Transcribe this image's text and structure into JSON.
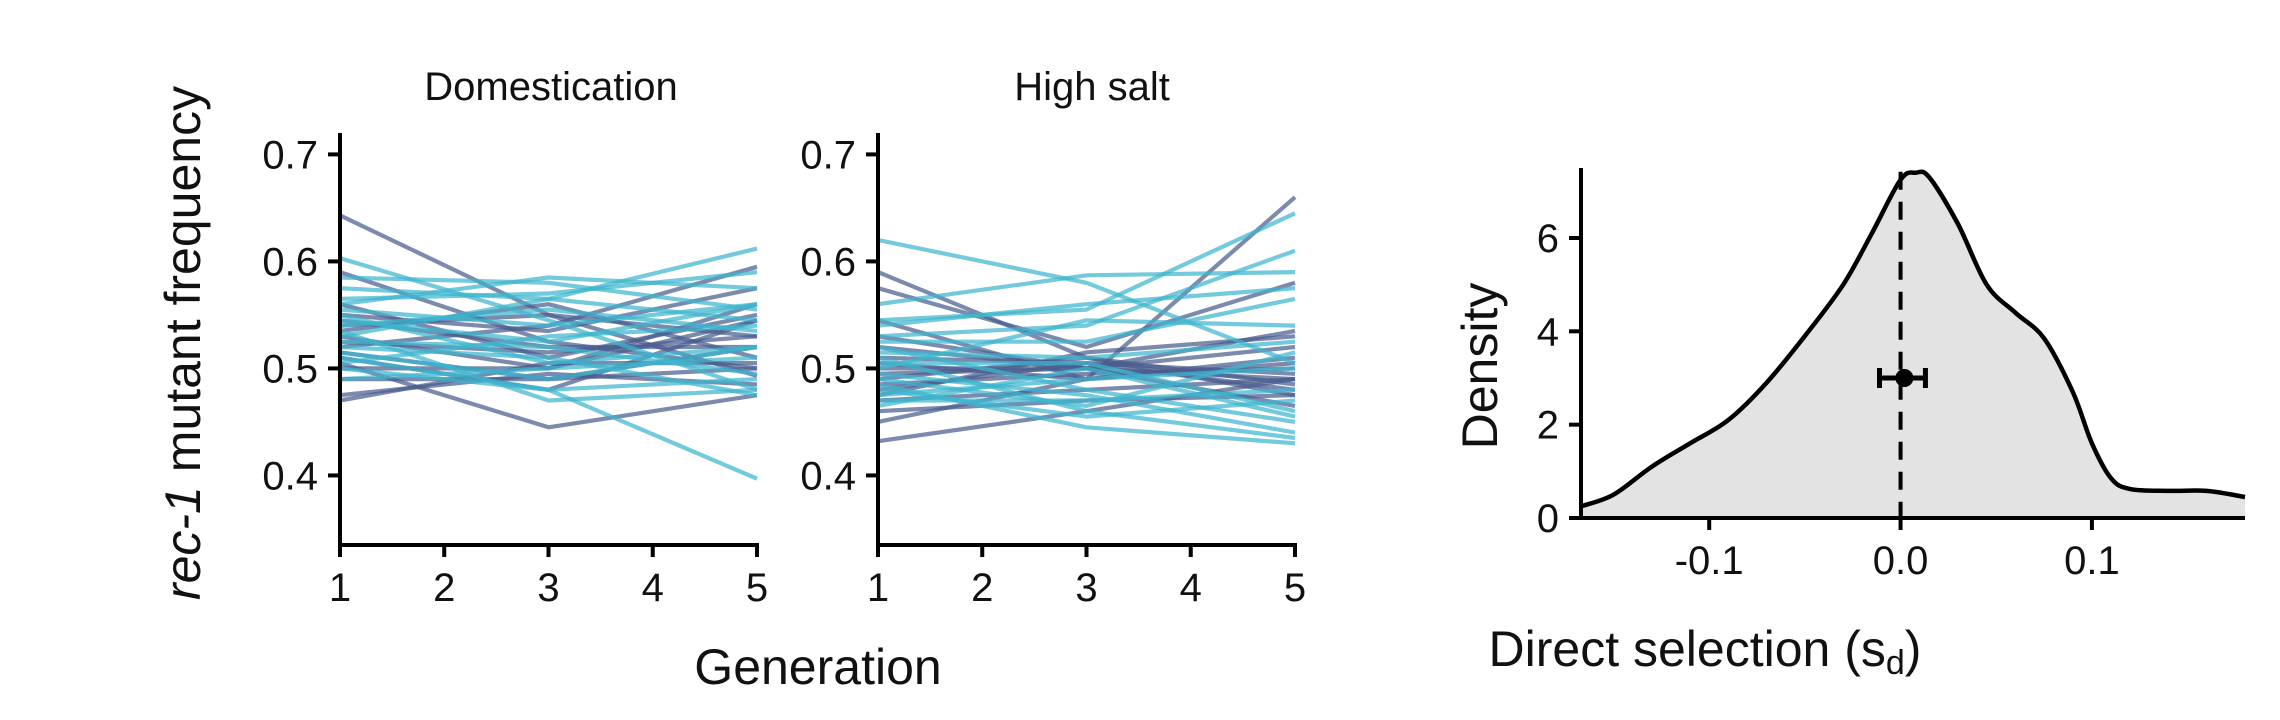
{
  "chart_data": [
    {
      "type": "line",
      "panel": "left",
      "title": "Domestication",
      "xlabel": "Generation",
      "ylabel_italic": "rec-1",
      "ylabel_rest": " mutant frequency",
      "xlim": [
        1,
        5
      ],
      "ylim": [
        0.335,
        0.72
      ],
      "xticks": [
        1,
        2,
        3,
        4,
        5
      ],
      "yticks": [
        0.4,
        0.5,
        0.6,
        0.7
      ],
      "ytick_labels": [
        "0.4",
        "0.5",
        "0.6",
        "0.7"
      ],
      "x": [
        1,
        3,
        5
      ],
      "series": [
        {
          "color": "#4a5d8f",
          "values": [
            0.643,
            0.55,
            0.493
          ]
        },
        {
          "color": "#4a5d8f",
          "values": [
            0.59,
            0.525,
            0.5
          ]
        },
        {
          "color": "#4a5d8f",
          "values": [
            0.56,
            0.51,
            0.55
          ]
        },
        {
          "color": "#4a5d8f",
          "values": [
            0.55,
            0.535,
            0.575
          ]
        },
        {
          "color": "#4a5d8f",
          "values": [
            0.545,
            0.52,
            0.52
          ]
        },
        {
          "color": "#4a5d8f",
          "values": [
            0.54,
            0.55,
            0.53
          ]
        },
        {
          "color": "#4a5d8f",
          "values": [
            0.535,
            0.56,
            0.51
          ]
        },
        {
          "color": "#4a5d8f",
          "values": [
            0.53,
            0.5,
            0.56
          ]
        },
        {
          "color": "#4a5d8f",
          "values": [
            0.525,
            0.515,
            0.53
          ]
        },
        {
          "color": "#4a5d8f",
          "values": [
            0.52,
            0.54,
            0.595
          ]
        },
        {
          "color": "#4a5d8f",
          "values": [
            0.515,
            0.49,
            0.5
          ]
        },
        {
          "color": "#4a5d8f",
          "values": [
            0.51,
            0.48,
            0.545
          ]
        },
        {
          "color": "#4a5d8f",
          "values": [
            0.505,
            0.445,
            0.475
          ]
        },
        {
          "color": "#4a5d8f",
          "values": [
            0.5,
            0.5,
            0.545
          ]
        },
        {
          "color": "#4a5d8f",
          "values": [
            0.49,
            0.49,
            0.52
          ]
        },
        {
          "color": "#4a5d8f",
          "values": [
            0.475,
            0.495,
            0.485
          ]
        },
        {
          "color": "#4a5d8f",
          "values": [
            0.47,
            0.505,
            0.505
          ]
        },
        {
          "color": "#3db5cf",
          "values": [
            0.603,
            0.545,
            0.48
          ]
        },
        {
          "color": "#3db5cf",
          "values": [
            0.585,
            0.58,
            0.555
          ]
        },
        {
          "color": "#3db5cf",
          "values": [
            0.575,
            0.565,
            0.612
          ]
        },
        {
          "color": "#3db5cf",
          "values": [
            0.565,
            0.57,
            0.59
          ]
        },
        {
          "color": "#3db5cf",
          "values": [
            0.56,
            0.585,
            0.575
          ]
        },
        {
          "color": "#3db5cf",
          "values": [
            0.555,
            0.54,
            0.56
          ]
        },
        {
          "color": "#3db5cf",
          "values": [
            0.55,
            0.505,
            0.52
          ]
        },
        {
          "color": "#3db5cf",
          "values": [
            0.545,
            0.525,
            0.56
          ]
        },
        {
          "color": "#3db5cf",
          "values": [
            0.54,
            0.555,
            0.535
          ]
        },
        {
          "color": "#3db5cf",
          "values": [
            0.535,
            0.47,
            0.48
          ]
        },
        {
          "color": "#3db5cf",
          "values": [
            0.53,
            0.565,
            0.545
          ]
        },
        {
          "color": "#3db5cf",
          "values": [
            0.525,
            0.52,
            0.495
          ]
        },
        {
          "color": "#3db5cf",
          "values": [
            0.52,
            0.51,
            0.475
          ]
        },
        {
          "color": "#3db5cf",
          "values": [
            0.515,
            0.49,
            0.52
          ]
        },
        {
          "color": "#3db5cf",
          "values": [
            0.51,
            0.48,
            0.49
          ]
        },
        {
          "color": "#3db5cf",
          "values": [
            0.505,
            0.53,
            0.54
          ]
        },
        {
          "color": "#3db5cf",
          "values": [
            0.5,
            0.48,
            0.397
          ]
        },
        {
          "color": "#3db5cf",
          "values": [
            0.49,
            0.5,
            0.51
          ]
        }
      ]
    },
    {
      "type": "line",
      "panel": "middle",
      "title": "High salt",
      "xlim": [
        1,
        5
      ],
      "ylim": [
        0.335,
        0.72
      ],
      "xticks": [
        1,
        2,
        3,
        4,
        5
      ],
      "yticks": [
        0.4,
        0.5,
        0.6,
        0.7
      ],
      "ytick_labels": [
        "0.4",
        "0.5",
        "0.6",
        "0.7"
      ],
      "x": [
        1,
        3,
        5
      ],
      "series": [
        {
          "color": "#4a5d8f",
          "values": [
            0.59,
            0.51,
            0.475
          ]
        },
        {
          "color": "#4a5d8f",
          "values": [
            0.575,
            0.52,
            0.58
          ]
        },
        {
          "color": "#4a5d8f",
          "values": [
            0.545,
            0.49,
            0.66
          ]
        },
        {
          "color": "#4a5d8f",
          "values": [
            0.53,
            0.5,
            0.49
          ]
        },
        {
          "color": "#4a5d8f",
          "values": [
            0.52,
            0.5,
            0.535
          ]
        },
        {
          "color": "#4a5d8f",
          "values": [
            0.51,
            0.505,
            0.495
          ]
        },
        {
          "color": "#4a5d8f",
          "values": [
            0.505,
            0.49,
            0.51
          ]
        },
        {
          "color": "#4a5d8f",
          "values": [
            0.5,
            0.5,
            0.465
          ]
        },
        {
          "color": "#4a5d8f",
          "values": [
            0.495,
            0.5,
            0.52
          ]
        },
        {
          "color": "#4a5d8f",
          "values": [
            0.49,
            0.51,
            0.485
          ]
        },
        {
          "color": "#4a5d8f",
          "values": [
            0.485,
            0.495,
            0.5
          ]
        },
        {
          "color": "#4a5d8f",
          "values": [
            0.48,
            0.505,
            0.48
          ]
        },
        {
          "color": "#4a5d8f",
          "values": [
            0.475,
            0.515,
            0.53
          ]
        },
        {
          "color": "#4a5d8f",
          "values": [
            0.47,
            0.48,
            0.49
          ]
        },
        {
          "color": "#4a5d8f",
          "values": [
            0.46,
            0.47,
            0.475
          ]
        },
        {
          "color": "#4a5d8f",
          "values": [
            0.45,
            0.49,
            0.505
          ]
        },
        {
          "color": "#4a5d8f",
          "values": [
            0.432,
            0.46,
            0.49
          ]
        },
        {
          "color": "#3db5cf",
          "values": [
            0.62,
            0.58,
            0.505
          ]
        },
        {
          "color": "#3db5cf",
          "values": [
            0.56,
            0.587,
            0.59
          ]
        },
        {
          "color": "#3db5cf",
          "values": [
            0.545,
            0.555,
            0.645
          ]
        },
        {
          "color": "#3db5cf",
          "values": [
            0.54,
            0.56,
            0.575
          ]
        },
        {
          "color": "#3db5cf",
          "values": [
            0.53,
            0.54,
            0.61
          ]
        },
        {
          "color": "#3db5cf",
          "values": [
            0.525,
            0.525,
            0.565
          ]
        },
        {
          "color": "#3db5cf",
          "values": [
            0.52,
            0.48,
            0.45
          ]
        },
        {
          "color": "#3db5cf",
          "values": [
            0.515,
            0.51,
            0.525
          ]
        },
        {
          "color": "#3db5cf",
          "values": [
            0.51,
            0.46,
            0.435
          ]
        },
        {
          "color": "#3db5cf",
          "values": [
            0.505,
            0.505,
            0.46
          ]
        },
        {
          "color": "#3db5cf",
          "values": [
            0.5,
            0.545,
            0.54
          ]
        },
        {
          "color": "#3db5cf",
          "values": [
            0.495,
            0.475,
            0.44
          ]
        },
        {
          "color": "#3db5cf",
          "values": [
            0.49,
            0.465,
            0.515
          ]
        },
        {
          "color": "#3db5cf",
          "values": [
            0.485,
            0.445,
            0.43
          ]
        },
        {
          "color": "#3db5cf",
          "values": [
            0.48,
            0.455,
            0.47
          ]
        },
        {
          "color": "#3db5cf",
          "values": [
            0.475,
            0.49,
            0.5
          ]
        },
        {
          "color": "#3db5cf",
          "values": [
            0.47,
            0.47,
            0.48
          ]
        },
        {
          "color": "#3db5cf",
          "values": [
            0.465,
            0.5,
            0.455
          ]
        }
      ]
    },
    {
      "type": "area",
      "panel": "right",
      "xlabel_main": "Direct selection (s",
      "xlabel_sub": "d",
      "xlabel_close": ")",
      "ylabel": "Density",
      "xlim": [
        -0.167,
        0.18
      ],
      "ylim": [
        0,
        7.5
      ],
      "xticks": [
        -0.1,
        0.0,
        0.1
      ],
      "xtick_labels": [
        "-0.1",
        "0.0",
        "0.1"
      ],
      "yticks": [
        0,
        2,
        4,
        6
      ],
      "ytick_labels": [
        "0",
        "2",
        "4",
        "6"
      ],
      "fill_color": "#e3e3e3",
      "line_color": "#000000",
      "density_x": [
        -0.167,
        -0.15,
        -0.13,
        -0.11,
        -0.09,
        -0.07,
        -0.05,
        -0.03,
        -0.015,
        0.0,
        0.008,
        0.015,
        0.03,
        0.045,
        0.06,
        0.075,
        0.09,
        0.1,
        0.11,
        0.12,
        0.14,
        0.16,
        0.18
      ],
      "density_y": [
        0.25,
        0.5,
        1.1,
        1.6,
        2.1,
        2.9,
        3.9,
        5.0,
        6.1,
        7.25,
        7.4,
        7.3,
        6.3,
        5.0,
        4.4,
        3.85,
        2.7,
        1.6,
        0.85,
        0.62,
        0.58,
        0.58,
        0.45
      ],
      "mean_line_x": 0.0,
      "point": {
        "x": 0.002,
        "y": 3.0,
        "xerr_low": -0.011,
        "xerr_high": 0.013
      }
    }
  ]
}
